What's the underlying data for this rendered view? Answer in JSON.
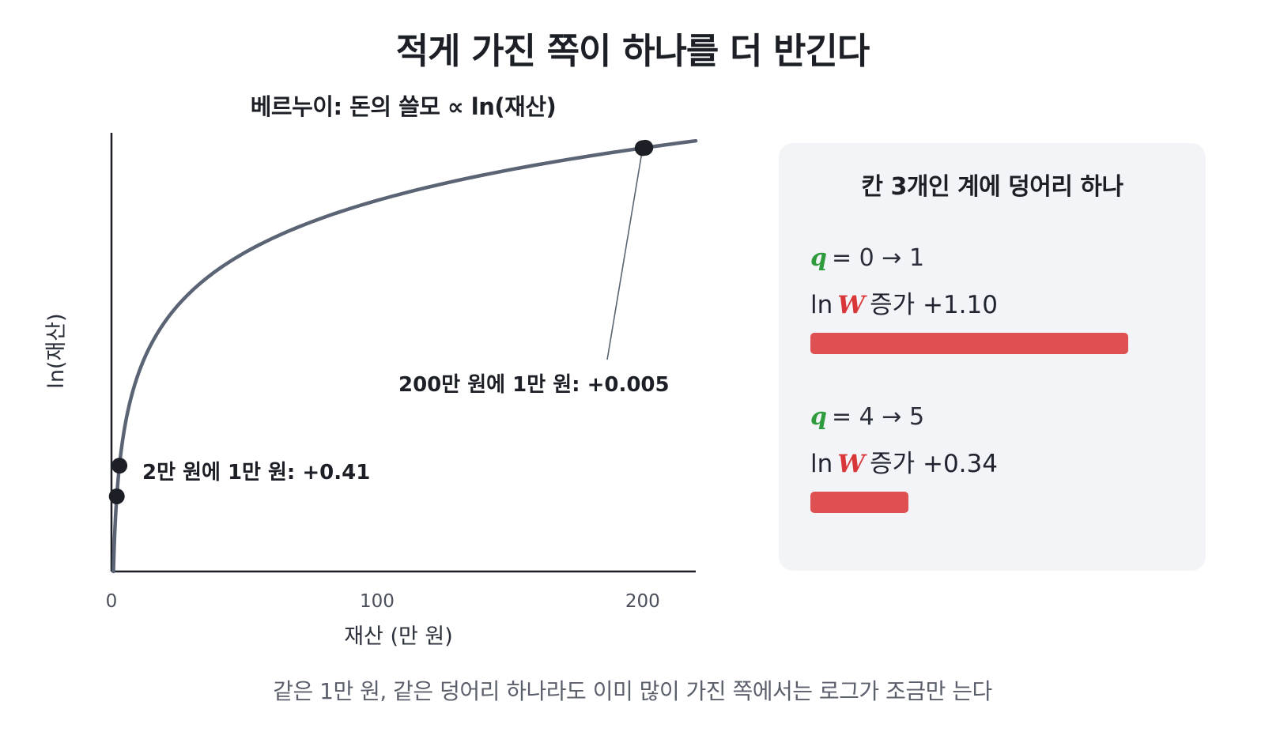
{
  "title": "적게 가진 쪽이 하나를 더 반긴다",
  "caption": "같은 1만 원, 같은 덩어리 하나라도 이미 많이 가진 쪽에서는 로그가 조금만 는다",
  "chart_data": {
    "type": "line",
    "title": "베르누이: 돈의 쓸모 ∝ ln(재산)",
    "xlabel": "재산 (만 원)",
    "ylabel": "ln(재산)",
    "xlim": [
      0,
      220
    ],
    "ylim": [
      -0.3,
      5.5
    ],
    "x_ticks": [
      0,
      100,
      200
    ],
    "x_tick_labels": [
      "0",
      "100",
      "200"
    ],
    "curve": "ln(x)",
    "curve_color": "#5b6474",
    "points": [
      {
        "x": 2,
        "y": 0.693
      },
      {
        "x": 3,
        "y": 1.099
      },
      {
        "x": 200,
        "y": 5.298
      },
      {
        "x": 201,
        "y": 5.303
      }
    ],
    "annotations": [
      {
        "text": "2만 원에 1만 원: +0.41",
        "x": 3,
        "y": 1.099
      },
      {
        "text": "200만 원에 1만 원: +0.005",
        "x": 200,
        "y": 5.298
      }
    ],
    "grid": false
  },
  "panel": {
    "title": "칸 3개인 계에 덩어리 하나",
    "rows": [
      {
        "q_var": "q",
        "q_text": "= 0 → 1",
        "ln_prefix": "ln",
        "w_var": "W",
        "ln_text": "증가 +1.10",
        "value": 1.1
      },
      {
        "q_var": "q",
        "q_text": "= 4 → 5",
        "ln_prefix": "ln",
        "w_var": "W",
        "ln_text": "증가 +0.34",
        "value": 0.34
      }
    ],
    "bar_color": "#de5051",
    "q_color": "#2e9b3d",
    "w_color": "#d9363a"
  }
}
